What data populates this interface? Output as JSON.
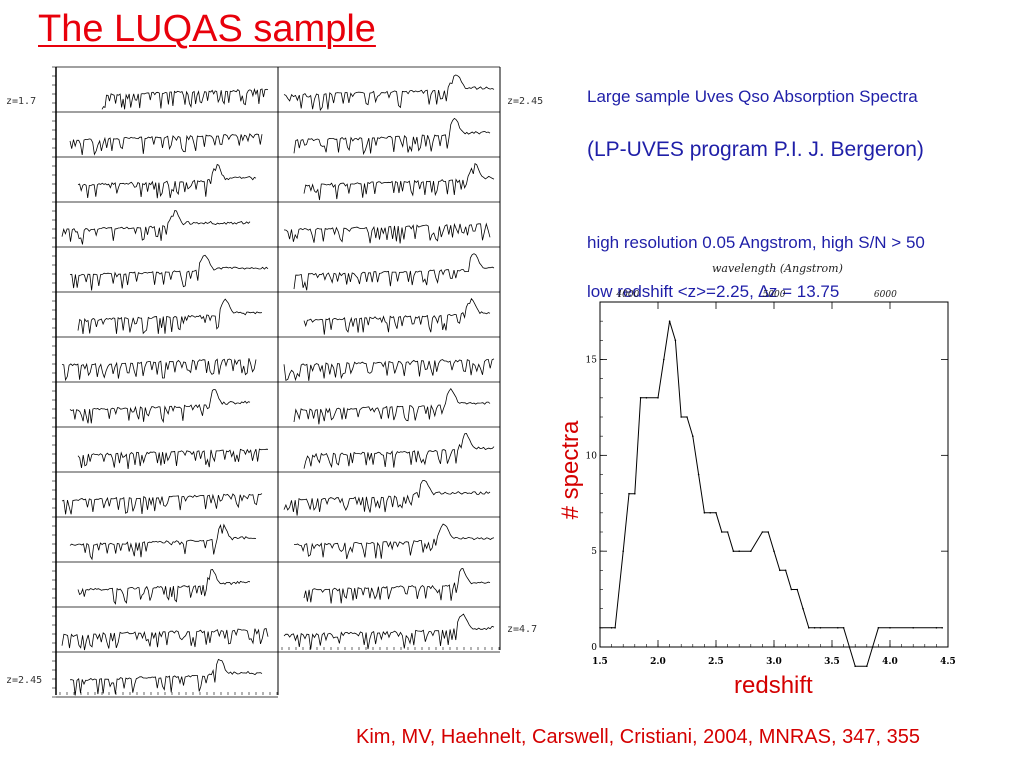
{
  "slide": {
    "title": "The LUQAS sample",
    "desc_line1": "Large sample Uves Qso Absorption Spectra",
    "desc_line2": "(LP-UVES program P.I. J. Bergeron)",
    "desc_line3": "high resolution 0.05 Angstrom, high S/N > 50",
    "desc_line4": "low redshift <z>=2.25, ∆z = 13.75",
    "reference": "Kim, MV, Haehnelt, Carswell, Cristiani, 2004, MNRAS, 347, 355",
    "colors": {
      "title": "#e8000b",
      "text": "#1f1fa8",
      "reference": "#d40000"
    }
  },
  "spectra_panel": {
    "z_labels": [
      "z=1.7",
      "z=2.45",
      "z=4.7",
      "z=2.45"
    ],
    "rows_left": 14,
    "rows_right": 13
  },
  "chart_data": {
    "type": "line",
    "xlabel": "redshift",
    "ylabel": "# spectra",
    "top_axis_label": "wavelength (Angstrom)",
    "top_ticks": [
      "4000",
      "5000",
      "6000"
    ],
    "xlim": [
      1.5,
      4.5
    ],
    "ylim": [
      0,
      18
    ],
    "x_ticks": [
      "1.5",
      "2.0",
      "2.5",
      "3.0",
      "3.5",
      "4.0",
      "4.5"
    ],
    "y_ticks": [
      "0",
      "5",
      "10",
      "15"
    ],
    "x": [
      1.5,
      1.6,
      1.63,
      1.7,
      1.75,
      1.8,
      1.85,
      1.9,
      2.0,
      2.05,
      2.1,
      2.15,
      2.2,
      2.25,
      2.3,
      2.35,
      2.4,
      2.45,
      2.5,
      2.55,
      2.6,
      2.65,
      2.7,
      2.8,
      2.9,
      2.95,
      3.0,
      3.05,
      3.1,
      3.15,
      3.2,
      3.25,
      3.3,
      3.35,
      3.4,
      3.55,
      3.6,
      3.65,
      3.7,
      3.8,
      3.85,
      3.9,
      4.0,
      4.2,
      4.4,
      4.45
    ],
    "y": [
      1,
      1,
      1,
      5,
      8,
      8,
      13,
      13,
      13,
      15,
      17,
      16,
      12,
      12,
      11,
      9,
      7,
      7,
      7,
      6,
      6,
      5,
      5,
      5,
      6,
      6,
      5,
      4,
      4,
      3,
      3,
      2,
      1,
      1,
      1,
      1,
      1,
      0,
      -1,
      -1,
      0,
      1,
      1,
      1,
      1,
      1
    ]
  }
}
